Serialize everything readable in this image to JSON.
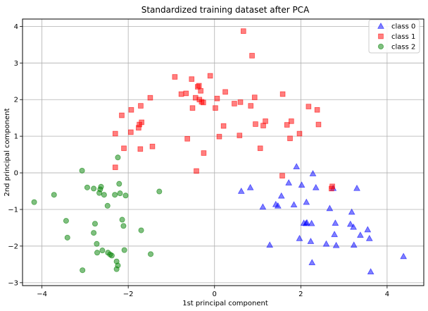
{
  "chart_data": {
    "type": "scatter",
    "title": "Standardized training dataset after PCA",
    "xlabel": "1st principal component",
    "ylabel": "2nd principal component",
    "xlim": [
      -4.45,
      4.85
    ],
    "ylim": [
      -3.08,
      4.2
    ],
    "xticks": [
      -4,
      -2,
      0,
      2,
      4
    ],
    "yticks": [
      -3,
      -2,
      -1,
      0,
      1,
      2,
      3,
      4
    ],
    "tick_labels_x": [
      "−4",
      "−2",
      "0",
      "2",
      "4"
    ],
    "tick_labels_y": [
      "−3",
      "−2",
      "−1",
      "0",
      "1",
      "2",
      "3",
      "4"
    ],
    "grid": true,
    "legend_position": "top-right",
    "series": [
      {
        "name": "class 0",
        "marker": "triangle",
        "color": "#0000ff",
        "points": [
          [
            0.62,
            -0.5
          ],
          [
            0.83,
            -0.4
          ],
          [
            1.12,
            -0.93
          ],
          [
            1.28,
            -1.97
          ],
          [
            1.42,
            -0.86
          ],
          [
            1.47,
            -0.9
          ],
          [
            1.55,
            -0.63
          ],
          [
            1.72,
            -0.27
          ],
          [
            1.84,
            -0.87
          ],
          [
            1.9,
            0.17
          ],
          [
            1.97,
            -1.79
          ],
          [
            2.02,
            -0.33
          ],
          [
            2.07,
            -1.37
          ],
          [
            2.12,
            -1.38
          ],
          [
            2.13,
            -0.8
          ],
          [
            2.14,
            -1.36
          ],
          [
            2.23,
            -1.87
          ],
          [
            2.25,
            -1.38
          ],
          [
            2.26,
            -2.45
          ],
          [
            2.28,
            -0.02
          ],
          [
            2.35,
            -0.4
          ],
          [
            2.59,
            -1.94
          ],
          [
            2.67,
            -0.97
          ],
          [
            2.75,
            -0.42
          ],
          [
            2.78,
            -1.68
          ],
          [
            2.8,
            -1.37
          ],
          [
            2.82,
            -1.98
          ],
          [
            3.15,
            -1.4
          ],
          [
            3.18,
            -1.07
          ],
          [
            3.23,
            -1.97
          ],
          [
            3.3,
            -0.42
          ],
          [
            3.22,
            -1.48
          ],
          [
            3.38,
            -1.7
          ],
          [
            3.55,
            -1.55
          ],
          [
            3.59,
            -1.79
          ],
          [
            3.62,
            -2.7
          ],
          [
            4.38,
            -2.28
          ]
        ]
      },
      {
        "name": "class 1",
        "marker": "square",
        "color": "#ff0000",
        "points": [
          [
            -2.3,
            0.15
          ],
          [
            -2.3,
            1.07
          ],
          [
            -2.15,
            1.57
          ],
          [
            -2.1,
            0.67
          ],
          [
            -1.94,
            1.11
          ],
          [
            -1.93,
            1.72
          ],
          [
            -1.76,
            1.23
          ],
          [
            -1.74,
            1.32
          ],
          [
            -1.72,
            0.65
          ],
          [
            -1.71,
            1.83
          ],
          [
            -1.69,
            1.38
          ],
          [
            -1.49,
            2.05
          ],
          [
            -1.44,
            0.72
          ],
          [
            -0.92,
            2.62
          ],
          [
            -0.77,
            2.15
          ],
          [
            -0.66,
            2.17
          ],
          [
            -0.63,
            0.93
          ],
          [
            -0.53,
            2.56
          ],
          [
            -0.51,
            1.77
          ],
          [
            -0.44,
            2.05
          ],
          [
            -0.42,
            0.05
          ],
          [
            -0.39,
            2.35
          ],
          [
            -0.36,
            2.38
          ],
          [
            -0.35,
            2.0
          ],
          [
            -0.32,
            2.24
          ],
          [
            -0.3,
            1.94
          ],
          [
            -0.26,
            1.92
          ],
          [
            -0.25,
            0.54
          ],
          [
            -0.1,
            2.65
          ],
          [
            0.02,
            1.77
          ],
          [
            0.06,
            2.03
          ],
          [
            0.11,
            0.99
          ],
          [
            0.21,
            1.28
          ],
          [
            0.25,
            2.21
          ],
          [
            0.46,
            1.89
          ],
          [
            0.58,
            1.02
          ],
          [
            0.6,
            1.93
          ],
          [
            0.67,
            3.87
          ],
          [
            0.84,
            1.83
          ],
          [
            0.87,
            3.2
          ],
          [
            0.93,
            2.06
          ],
          [
            0.95,
            1.33
          ],
          [
            1.06,
            0.67
          ],
          [
            1.13,
            1.29
          ],
          [
            1.18,
            1.41
          ],
          [
            1.57,
            -0.08
          ],
          [
            1.58,
            2.15
          ],
          [
            1.68,
            1.31
          ],
          [
            1.75,
            0.94
          ],
          [
            1.78,
            1.41
          ],
          [
            1.97,
            1.07
          ],
          [
            2.18,
            1.81
          ],
          [
            2.38,
            1.72
          ],
          [
            2.41,
            1.32
          ],
          [
            2.71,
            -0.43
          ],
          [
            2.73,
            -0.37
          ]
        ]
      },
      {
        "name": "class 2",
        "marker": "circle",
        "color": "#008000",
        "points": [
          [
            -4.18,
            -0.8
          ],
          [
            -3.72,
            -0.6
          ],
          [
            -3.44,
            -1.31
          ],
          [
            -3.41,
            -1.77
          ],
          [
            -3.07,
            0.06
          ],
          [
            -3.06,
            -2.66
          ],
          [
            -2.95,
            -0.4
          ],
          [
            -2.8,
            -1.64
          ],
          [
            -2.8,
            -0.43
          ],
          [
            -2.77,
            -1.39
          ],
          [
            -2.73,
            -1.94
          ],
          [
            -2.72,
            -2.18
          ],
          [
            -2.67,
            -0.55
          ],
          [
            -2.65,
            -0.45
          ],
          [
            -2.63,
            -0.38
          ],
          [
            -2.6,
            -2.12
          ],
          [
            -2.56,
            -0.6
          ],
          [
            -2.48,
            -0.9
          ],
          [
            -2.47,
            -2.18
          ],
          [
            -2.42,
            -2.23
          ],
          [
            -2.38,
            -2.26
          ],
          [
            -2.31,
            -0.6
          ],
          [
            -2.27,
            -2.42
          ],
          [
            -2.27,
            -2.63
          ],
          [
            -2.24,
            -2.53
          ],
          [
            -2.24,
            0.42
          ],
          [
            -2.21,
            -0.3
          ],
          [
            -2.19,
            -0.56
          ],
          [
            -2.14,
            -1.28
          ],
          [
            -2.11,
            -1.45
          ],
          [
            -2.09,
            -2.11
          ],
          [
            -2.06,
            -0.62
          ],
          [
            -1.7,
            -1.57
          ],
          [
            -1.48,
            -2.22
          ],
          [
            -1.28,
            -0.51
          ]
        ]
      }
    ]
  }
}
